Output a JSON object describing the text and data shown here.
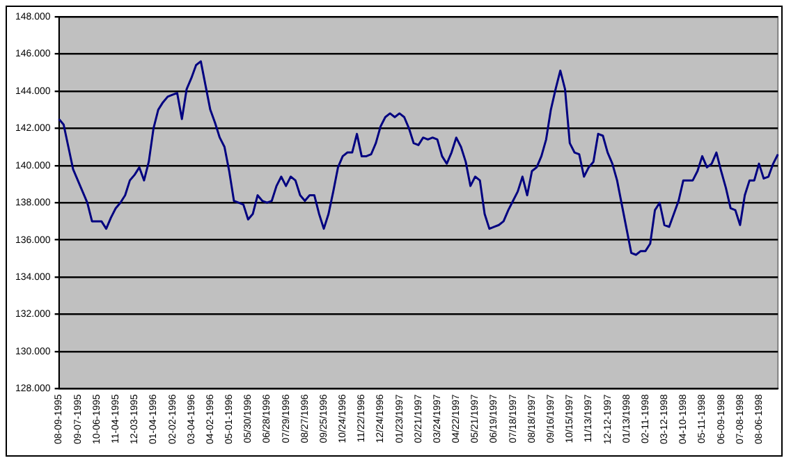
{
  "chart_data": {
    "type": "line",
    "categories": [
      "08-09-1995",
      null,
      null,
      null,
      "09-07-1995",
      null,
      null,
      null,
      "10-06-1995",
      null,
      null,
      null,
      "11-04-1995",
      null,
      null,
      null,
      "12-03-1995",
      null,
      null,
      null,
      "01-04-1996",
      null,
      null,
      null,
      "02-02-1996",
      null,
      null,
      null,
      "03-04-1996",
      null,
      null,
      null,
      "04-02-1996",
      null,
      null,
      null,
      "05-01-1996",
      null,
      null,
      null,
      "05/30/1996",
      null,
      null,
      null,
      "06/28/1996",
      null,
      null,
      null,
      "07/29/1996",
      null,
      null,
      null,
      "08/27/1996",
      null,
      null,
      null,
      "09/25/1996",
      null,
      null,
      null,
      "10/24/1996",
      null,
      null,
      null,
      "11/22/1996",
      null,
      null,
      null,
      "12/24/1996",
      null,
      null,
      null,
      "01/23/1997",
      null,
      null,
      null,
      "02/21/1997",
      null,
      null,
      null,
      "03/24/1997",
      null,
      null,
      null,
      "04/22/1997",
      null,
      null,
      null,
      "05/21/1997",
      null,
      null,
      null,
      "06/19/1997",
      null,
      null,
      null,
      "07/18/1997",
      null,
      null,
      null,
      "08/18/1997",
      null,
      null,
      null,
      "09/16/1997",
      null,
      null,
      null,
      "10/15/1997",
      null,
      null,
      null,
      "11/13/1997",
      null,
      null,
      null,
      "12-12-1997",
      null,
      null,
      null,
      "01/13/1998",
      null,
      null,
      null,
      "02-11-1998",
      null,
      null,
      null,
      "03-12-1998",
      null,
      null,
      null,
      "04-10-1998",
      null,
      null,
      null,
      "05-11-1998",
      null,
      null,
      null,
      "06-09-1998",
      null,
      null,
      null,
      "07-08-1998",
      null,
      null,
      null,
      "08-06-1998",
      null,
      null,
      null,
      null
    ],
    "series": [
      {
        "color": "#000080",
        "values": [
          142.5,
          142.2,
          141,
          139.8,
          139.2,
          138.6,
          138,
          137,
          137,
          137,
          136.6,
          137.2,
          137.7,
          138,
          138.4,
          139.2,
          139.5,
          139.9,
          139.2,
          140.2,
          142,
          143,
          143.4,
          143.7,
          143.8,
          143.9,
          142.5,
          144.1,
          144.7,
          145.4,
          145.6,
          144.3,
          143,
          142.3,
          141.5,
          141,
          139.7,
          138.1,
          138,
          137.9,
          137.1,
          137.4,
          138.4,
          138.1,
          138,
          138.1,
          138.9,
          139.4,
          138.9,
          139.4,
          139.2,
          138.4,
          138.1,
          138.4,
          138.4,
          137.4,
          136.6,
          137.4,
          138.6,
          139.9,
          140.5,
          140.7,
          140.7,
          141.7,
          140.5,
          140.5,
          140.6,
          141.2,
          142.1,
          142.6,
          142.8,
          142.6,
          142.8,
          142.6,
          142,
          141.2,
          141.1,
          141.5,
          141.4,
          141.5,
          141.4,
          140.5,
          140.1,
          140.7,
          141.5,
          141,
          140.2,
          138.9,
          139.4,
          139.2,
          137.4,
          136.6,
          136.7,
          136.8,
          137,
          137.6,
          138.1,
          138.6,
          139.4,
          138.4,
          139.7,
          139.9,
          140.5,
          141.4,
          143,
          144.1,
          145.1,
          144.1,
          141.2,
          140.7,
          140.6,
          139.4,
          139.9,
          140.2,
          141.7,
          141.6,
          140.7,
          140.1,
          139.2,
          137.9,
          136.6,
          135.3,
          135.2,
          135.4,
          135.4,
          135.8,
          137.6,
          138,
          136.8,
          136.7,
          137.4,
          138.1,
          139.2,
          139.2,
          139.2,
          139.7,
          140.5,
          139.9,
          140.1,
          140.7,
          139.7,
          138.8,
          137.7,
          137.6,
          136.8,
          138.4,
          139.2,
          139.2,
          140.1,
          139.3,
          139.4,
          140.1,
          140.6
        ]
      }
    ],
    "ylim": [
      128,
      148
    ],
    "yticks": [
      {
        "value": 128,
        "label": "128.000"
      },
      {
        "value": 130,
        "label": "130.000"
      },
      {
        "value": 132,
        "label": "132.000"
      },
      {
        "value": 134,
        "label": "134.000"
      },
      {
        "value": 136,
        "label": "136.000"
      },
      {
        "value": 138,
        "label": "138.000"
      },
      {
        "value": 140,
        "label": "140.000"
      },
      {
        "value": 142,
        "label": "142.000"
      },
      {
        "value": 144,
        "label": "144.000"
      },
      {
        "value": 146,
        "label": "146.000"
      },
      {
        "value": 148,
        "label": "148.000"
      }
    ],
    "grid": "y",
    "legend": false,
    "marker": "none",
    "line_style": "solid"
  }
}
